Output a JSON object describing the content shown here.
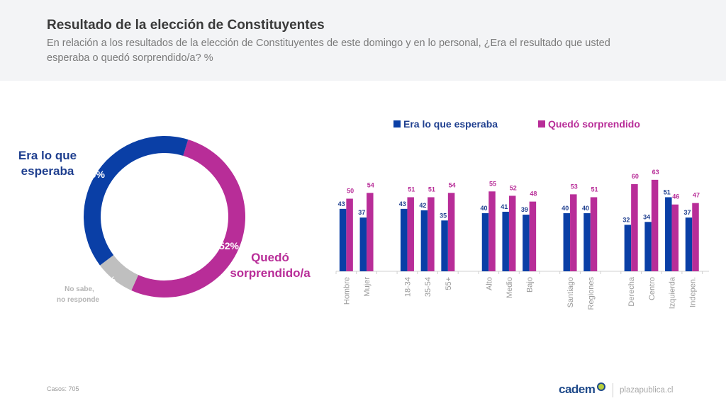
{
  "header": {
    "title": "Resultado de la elección de Constituyentes",
    "subtitle": "En relación a los resultados de la elección de Constituyentes de este domingo y en lo personal, ¿Era el resultado que usted esperaba o quedó sorprendido/a? %"
  },
  "colors": {
    "blue": "#0a3fa6",
    "magenta": "#b82d98",
    "gray": "#bfbfbf",
    "blue_text": "#1f3f8f",
    "magenta_text": "#b82d98"
  },
  "footer": {
    "casos_label": "Casos:",
    "casos_value": "705",
    "logo": "cadem",
    "site": "plazapublica.cl"
  },
  "chart_data": [
    {
      "type": "pie",
      "donut": true,
      "slices": [
        {
          "label": "Era lo que esperaba",
          "value": 40,
          "value_label": "40%"
        },
        {
          "label": "Quedó sorprendido/a",
          "value": 52,
          "value_label": "52%"
        },
        {
          "label": "No sabe, no responde",
          "value": 8,
          "value_label": "8%"
        }
      ]
    },
    {
      "type": "bar",
      "legend": [
        "Era lo que esperaba",
        "Quedó sorprendido"
      ],
      "legend_position": "top",
      "grid": false,
      "ylim": [
        0,
        70
      ],
      "groups": [
        [
          "Hombre",
          "Mujer"
        ],
        [
          "18-34",
          "35-54",
          "55+"
        ],
        [
          "Alto",
          "Medio",
          "Bajo"
        ],
        [
          "Santiago",
          "Regiones"
        ],
        [
          "Derecha",
          "Centro",
          "Izquierda",
          "Indepen."
        ]
      ],
      "categories": [
        "Hombre",
        "Mujer",
        "18-34",
        "35-54",
        "55+",
        "Alto",
        "Medio",
        "Bajo",
        "Santiago",
        "Regiones",
        "Derecha",
        "Centro",
        "Izquierda",
        "Indepen."
      ],
      "series": [
        {
          "name": "Era lo que esperaba",
          "values": [
            43,
            37,
            43,
            42,
            35,
            40,
            41,
            39,
            40,
            40,
            32,
            34,
            51,
            37
          ]
        },
        {
          "name": "Quedó sorprendido",
          "values": [
            50,
            54,
            51,
            51,
            54,
            55,
            52,
            48,
            53,
            51,
            60,
            63,
            46,
            47
          ]
        }
      ]
    }
  ]
}
